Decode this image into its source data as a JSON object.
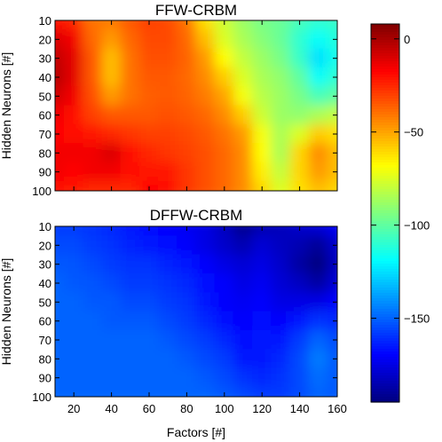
{
  "chart_data": {
    "type": "heatmap",
    "colormap": "jet",
    "color_range": [
      -195,
      8
    ],
    "colorbar_ticks": [
      "0",
      "−50",
      "−100",
      "−150"
    ],
    "colorbar_tick_values": [
      0,
      -50,
      -100,
      -150
    ],
    "xlabel": "Factors [#]",
    "x_tick_labels": [
      "20",
      "40",
      "60",
      "80",
      "100",
      "120",
      "140",
      "160"
    ],
    "x_range": [
      10,
      160
    ],
    "y_tick_labels": [
      "10",
      "20",
      "30",
      "40",
      "50",
      "60",
      "70",
      "80",
      "90",
      "100"
    ],
    "y_range": [
      10,
      100
    ],
    "factors": [
      10,
      20,
      30,
      40,
      50,
      60,
      70,
      80,
      90,
      100,
      110,
      120,
      130,
      140,
      150,
      160
    ],
    "neurons": [
      10,
      20,
      30,
      40,
      50,
      60,
      70,
      80,
      90,
      100
    ],
    "panels": [
      {
        "title": "FFW-CRBM",
        "ylabel": "Hidden Neurons [#]",
        "values": [
          [
            -20,
            -25,
            -40,
            -42,
            -35,
            -30,
            -32,
            -40,
            -62,
            -78,
            -88,
            -95,
            -98,
            -105,
            -110,
            -108
          ],
          [
            -10,
            -15,
            -38,
            -48,
            -38,
            -32,
            -32,
            -38,
            -55,
            -75,
            -85,
            -92,
            -98,
            -110,
            -118,
            -112
          ],
          [
            -5,
            -12,
            -35,
            -55,
            -40,
            -33,
            -33,
            -37,
            -48,
            -68,
            -80,
            -88,
            -95,
            -108,
            -125,
            -115
          ],
          [
            -3,
            -12,
            -35,
            -55,
            -40,
            -35,
            -35,
            -38,
            -45,
            -58,
            -75,
            -85,
            -90,
            -100,
            -118,
            -110
          ],
          [
            -8,
            -15,
            -33,
            -48,
            -40,
            -36,
            -35,
            -37,
            -42,
            -50,
            -70,
            -82,
            -88,
            -95,
            -105,
            -100
          ],
          [
            -15,
            -20,
            -30,
            -35,
            -35,
            -35,
            -33,
            -35,
            -38,
            -45,
            -58,
            -78,
            -88,
            -90,
            -85,
            -80
          ],
          [
            -18,
            -20,
            -22,
            -25,
            -28,
            -30,
            -30,
            -32,
            -35,
            -40,
            -48,
            -70,
            -85,
            -75,
            -58,
            -62
          ],
          [
            -15,
            -15,
            -15,
            -10,
            -20,
            -25,
            -28,
            -30,
            -33,
            -38,
            -45,
            -68,
            -85,
            -60,
            -45,
            -55
          ],
          [
            -15,
            -18,
            -15,
            -15,
            -20,
            -22,
            -22,
            -28,
            -33,
            -38,
            -45,
            -65,
            -80,
            -60,
            -48,
            -55
          ],
          [
            -20,
            -22,
            -25,
            -25,
            -25,
            -18,
            -20,
            -28,
            -33,
            -38,
            -45,
            -60,
            -75,
            -62,
            -55,
            -60
          ]
        ]
      },
      {
        "title": "DFFW-CRBM",
        "ylabel": "Hidden Neurons [#]",
        "values": [
          [
            -158,
            -158,
            -160,
            -162,
            -165,
            -168,
            -170,
            -172,
            -175,
            -182,
            -192,
            -185,
            -183,
            -180,
            -178,
            -172
          ],
          [
            -155,
            -155,
            -158,
            -160,
            -163,
            -165,
            -168,
            -170,
            -175,
            -180,
            -185,
            -178,
            -182,
            -185,
            -190,
            -180
          ],
          [
            -152,
            -153,
            -155,
            -158,
            -160,
            -160,
            -163,
            -165,
            -170,
            -175,
            -178,
            -175,
            -180,
            -188,
            -195,
            -182
          ],
          [
            -150,
            -152,
            -153,
            -155,
            -158,
            -158,
            -160,
            -162,
            -168,
            -170,
            -175,
            -172,
            -178,
            -182,
            -188,
            -178
          ],
          [
            -150,
            -150,
            -152,
            -152,
            -155,
            -155,
            -158,
            -160,
            -165,
            -170,
            -172,
            -170,
            -175,
            -175,
            -175,
            -170
          ],
          [
            -150,
            -150,
            -150,
            -152,
            -152,
            -152,
            -155,
            -158,
            -162,
            -168,
            -170,
            -168,
            -170,
            -165,
            -160,
            -162
          ],
          [
            -150,
            -150,
            -150,
            -150,
            -150,
            -150,
            -152,
            -155,
            -158,
            -162,
            -168,
            -165,
            -165,
            -158,
            -150,
            -155
          ],
          [
            -150,
            -150,
            -150,
            -150,
            -150,
            -150,
            -150,
            -152,
            -155,
            -158,
            -165,
            -165,
            -162,
            -155,
            -145,
            -152
          ],
          [
            -150,
            -150,
            -150,
            -150,
            -150,
            -150,
            -150,
            -150,
            -152,
            -155,
            -160,
            -162,
            -160,
            -155,
            -148,
            -152
          ],
          [
            -150,
            -150,
            -150,
            -150,
            -150,
            -150,
            -150,
            -150,
            -150,
            -152,
            -155,
            -158,
            -158,
            -155,
            -150,
            -152
          ]
        ]
      }
    ]
  }
}
